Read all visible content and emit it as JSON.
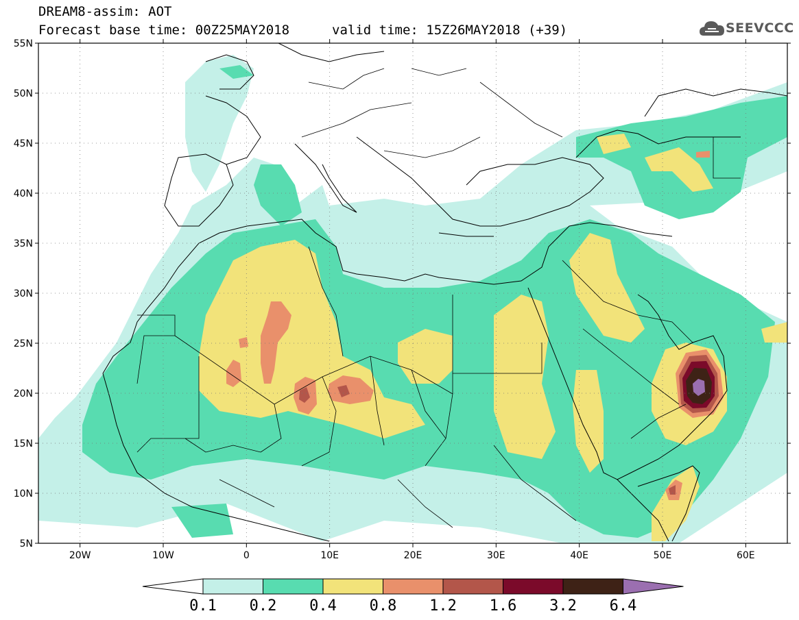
{
  "header": {
    "title": "DREAM8-assim: AOT",
    "base_time": "Forecast base time: 00Z25MAY2018",
    "valid_time": "valid time: 15Z26MAY2018 (+39)",
    "logo_text": "SEEVCCC"
  },
  "map": {
    "variable": "AOT",
    "lon_range": [
      -25,
      65
    ],
    "lat_range": [
      5,
      55
    ],
    "lat_ticks": [
      "5N",
      "10N",
      "15N",
      "20N",
      "25N",
      "30N",
      "35N",
      "40N",
      "45N",
      "50N",
      "55N"
    ],
    "lon_ticks": [
      "20W",
      "10W",
      "0",
      "10E",
      "20E",
      "30E",
      "40E",
      "50E",
      "60E"
    ],
    "grid": "dotted"
  },
  "colorbar": {
    "levels": [
      "0.1",
      "0.2",
      "0.4",
      "0.8",
      "1.2",
      "1.6",
      "3.2",
      "6.4"
    ],
    "colors": [
      "#c4f0e8",
      "#58dcb0",
      "#f2e37a",
      "#e9906b",
      "#b3564a",
      "#7b0a2a",
      "#3e2216",
      "#9b6fb0"
    ],
    "under_color": "#ffffff",
    "over_color": "#9b6fb0"
  }
}
